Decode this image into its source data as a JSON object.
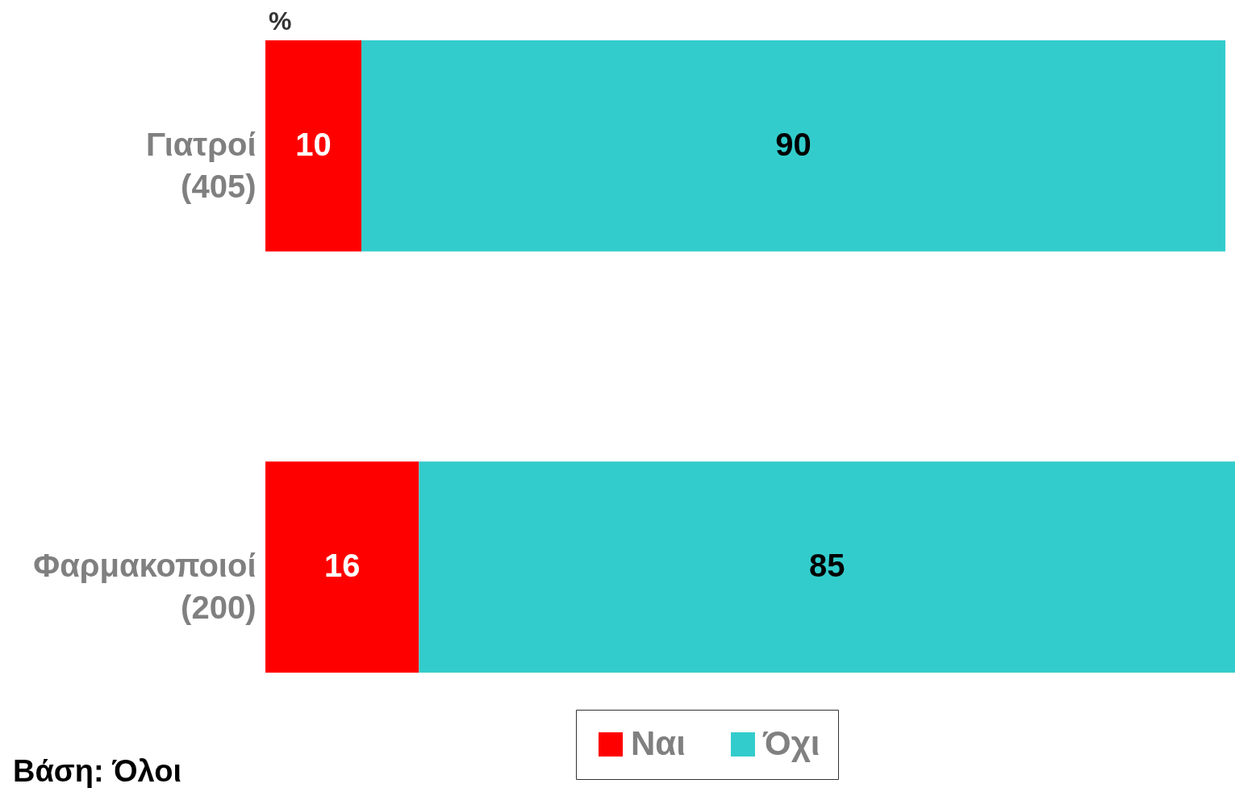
{
  "chart_data": {
    "type": "bar",
    "orientation": "horizontal",
    "stacked": true,
    "categories": [
      "Γιατροί\n(405)",
      "Φαρμακοποιοί\n(200)"
    ],
    "series": [
      {
        "name": "Ναι",
        "color": "#ff0000",
        "values": [
          10,
          16
        ]
      },
      {
        "name": "Όχι",
        "color": "#33cccc",
        "values": [
          90,
          85
        ]
      }
    ],
    "xlim": [
      0,
      101
    ],
    "tick_labels": "y",
    "data_labels": true,
    "legend": "bottom",
    "grid": false,
    "annotations": [
      "%",
      "Βάση: Όλοι"
    ]
  }
}
